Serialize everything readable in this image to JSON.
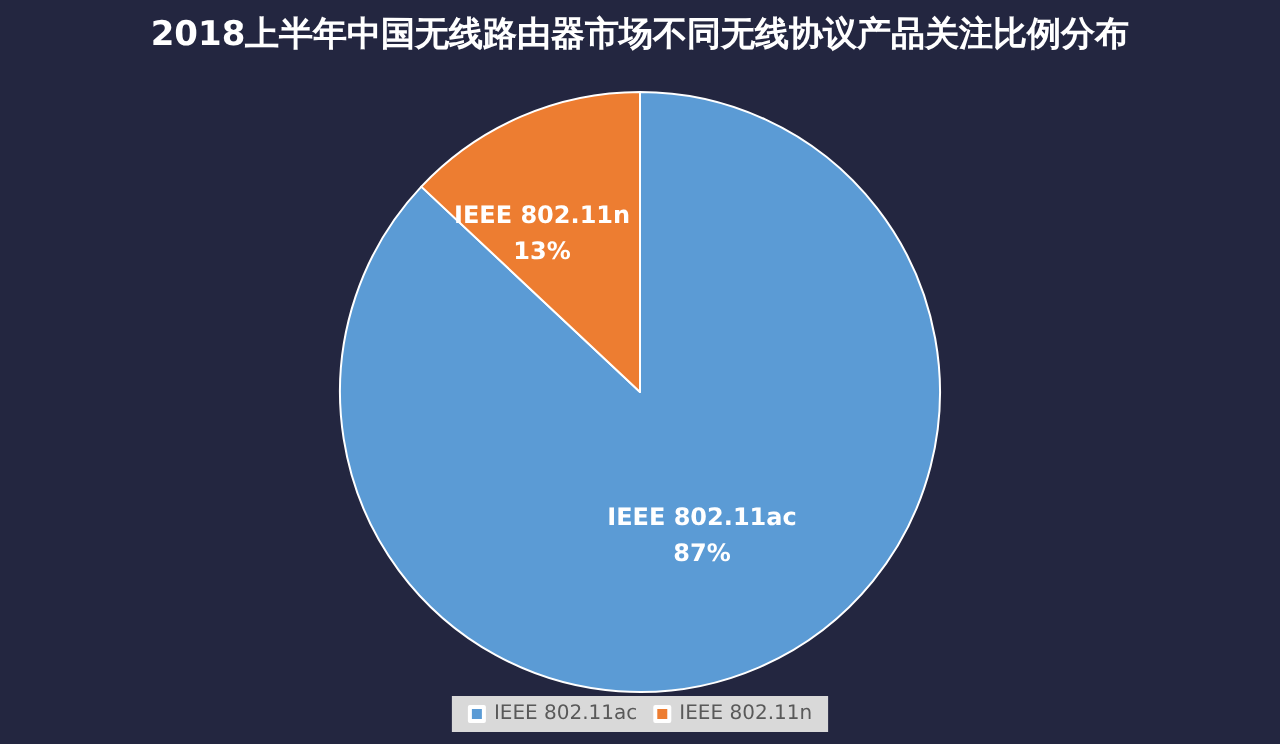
{
  "chart_data": {
    "type": "pie",
    "title": "2018上半年中国无线路由器市场不同无线协议产品关注比例分布",
    "categories": [
      "IEEE 802.11ac",
      "IEEE 802.11n"
    ],
    "values": [
      87,
      13
    ],
    "colors": [
      "#5b9bd5",
      "#ed7d31"
    ],
    "value_labels": [
      "87%",
      "13%"
    ],
    "legend": "bottom"
  }
}
